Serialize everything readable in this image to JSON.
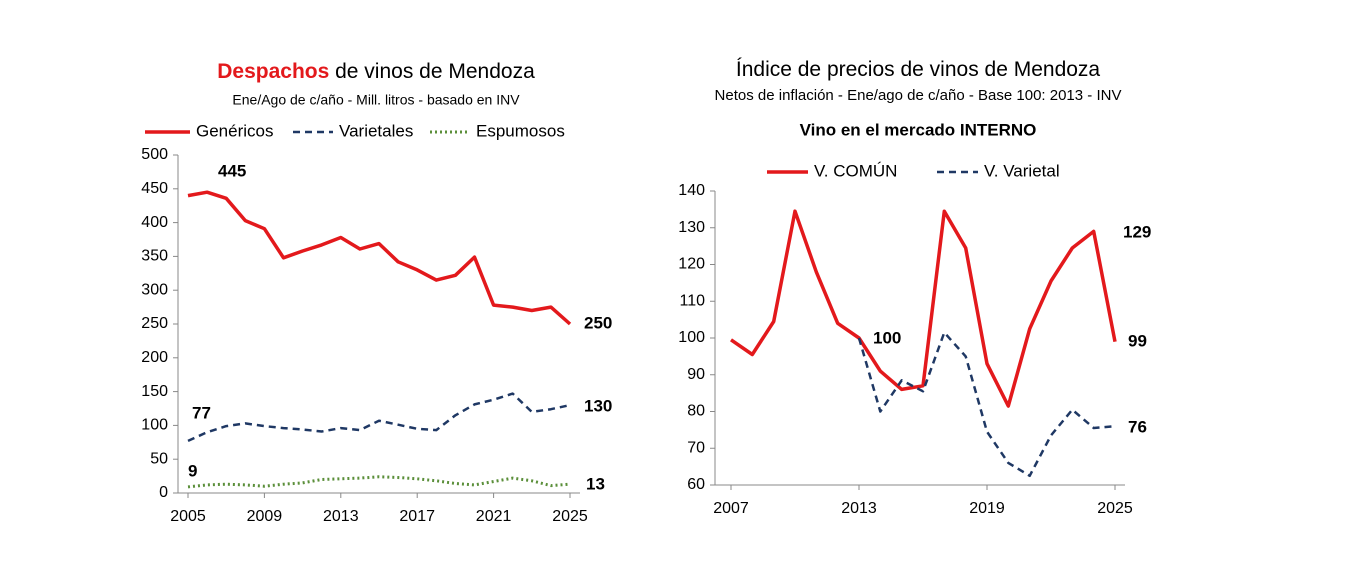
{
  "chart_data": [
    {
      "type": "line",
      "title": [
        "Despachos",
        "de vinos de Mendoza"
      ],
      "title_colors": [
        "#e3191c",
        "#000000"
      ],
      "subtitle": "Ene/Ago de c/año - Mill. litros - basado en INV",
      "x": [
        2005,
        2006,
        2007,
        2008,
        2009,
        2010,
        2011,
        2012,
        2013,
        2014,
        2015,
        2016,
        2017,
        2018,
        2019,
        2020,
        2021,
        2022,
        2023,
        2024,
        2025
      ],
      "xlim": [
        2005,
        2025
      ],
      "xticks": [
        2005,
        2009,
        2013,
        2017,
        2021,
        2025
      ],
      "ylim": [
        0,
        500
      ],
      "yticks": [
        0,
        50,
        100,
        150,
        200,
        250,
        300,
        350,
        400,
        450,
        500
      ],
      "grid": false,
      "series": [
        {
          "name": "Genéricos",
          "color": "#e3191c",
          "dash": "solid",
          "label_color": "#e3191c",
          "labeled": [
            1,
            20
          ],
          "values": [
            440,
            445,
            436,
            403,
            391,
            348,
            358,
            367,
            378,
            361,
            369,
            342,
            330,
            315,
            322,
            349,
            278,
            275,
            270,
            275,
            250
          ]
        },
        {
          "name": "Varietales",
          "color": "#1f3864",
          "dash": "dash",
          "label_color": "#000000",
          "labeled": [
            0,
            20
          ],
          "values": [
            77,
            90,
            99,
            103,
            99,
            96,
            94,
            91,
            96,
            93,
            107,
            101,
            95,
            93,
            115,
            131,
            138,
            147,
            120,
            124,
            130
          ]
        },
        {
          "name": "Espumosos",
          "color": "#5b8f3a",
          "dash": "dot",
          "label_color": "#2aa04a",
          "labeled": [
            0,
            20
          ],
          "values": [
            9,
            12,
            13,
            12,
            10,
            13,
            15,
            20,
            21,
            22,
            24,
            23,
            21,
            18,
            14,
            12,
            17,
            22,
            18,
            11,
            13
          ]
        }
      ]
    },
    {
      "type": "line",
      "title": [
        "Índice de precios de vinos de Mendoza"
      ],
      "title_colors": [
        "#000000"
      ],
      "subtitle": "Netos de inflación - Ene/ago de c/año - Base 100: 2013 - INV",
      "heading": "Vino en el mercado INTERNO",
      "x": [
        2007,
        2008,
        2009,
        2010,
        2011,
        2012,
        2013,
        2014,
        2015,
        2016,
        2017,
        2018,
        2019,
        2020,
        2021,
        2022,
        2023,
        2024,
        2025
      ],
      "xlim": [
        2007,
        2025
      ],
      "xticks": [
        2007,
        2013,
        2019,
        2025
      ],
      "ylim": [
        60,
        140
      ],
      "yticks": [
        60,
        70,
        80,
        90,
        100,
        110,
        120,
        130,
        140
      ],
      "grid": false,
      "series": [
        {
          "name": "V. COMÚN",
          "color": "#e3191c",
          "dash": "solid",
          "label_color": "#e3191c",
          "labeled": [
            17,
            18
          ],
          "values": [
            99.5,
            95.5,
            104.5,
            134.5,
            118,
            104,
            100,
            91,
            86,
            87,
            134.5,
            124.5,
            93,
            81.5,
            102.5,
            115.5,
            124.5,
            129,
            99
          ]
        },
        {
          "name": "V. Varietal",
          "color": "#1f3864",
          "dash": "dash",
          "label_color": "#000000",
          "labeled": [
            6,
            18
          ],
          "values": [
            null,
            null,
            null,
            null,
            null,
            null,
            100,
            80,
            88.5,
            85.5,
            101.5,
            95,
            74.5,
            66,
            62.5,
            73.5,
            80.5,
            75.5,
            76
          ]
        }
      ]
    }
  ]
}
